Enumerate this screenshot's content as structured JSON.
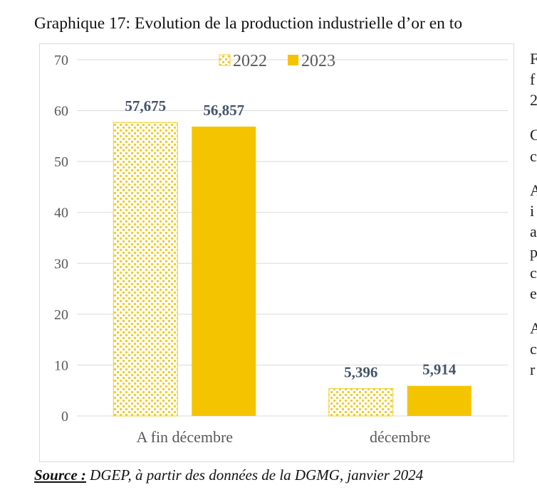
{
  "heading": "Graphique 17: Evolution de la production industrielle d’or en to",
  "side_text": [
    "F",
    "f",
    "2",
    "C",
    "c",
    "A",
    "i",
    "a",
    "p",
    "c",
    "e",
    "A",
    "c",
    "r"
  ],
  "source": {
    "label": "Source :",
    "text": " DGEP, à partir des données de la DGMG, janvier 2024"
  },
  "colors": {
    "bar_2023": "#f5c400",
    "pattern_dot": "#f2cc2e",
    "grid": "#d9d9d9",
    "axis_text": "#595959",
    "data_label": "#44546a"
  },
  "chart_data": {
    "type": "bar",
    "categories": [
      "A fin décembre",
      "décembre"
    ],
    "series": [
      {
        "name": "2022",
        "values": [
          57.675,
          5.396
        ],
        "labels": [
          "57,675",
          "5,396"
        ],
        "fill": "pattern"
      },
      {
        "name": "2023",
        "values": [
          56.857,
          5.914
        ],
        "labels": [
          "56,857",
          "5,914"
        ],
        "fill": "solid"
      }
    ],
    "ylim": [
      0,
      70
    ],
    "yticks": [
      0,
      10,
      20,
      30,
      40,
      50,
      60,
      70
    ],
    "grid": true,
    "legend": "top-center",
    "title": "",
    "xlabel": "",
    "ylabel": ""
  }
}
